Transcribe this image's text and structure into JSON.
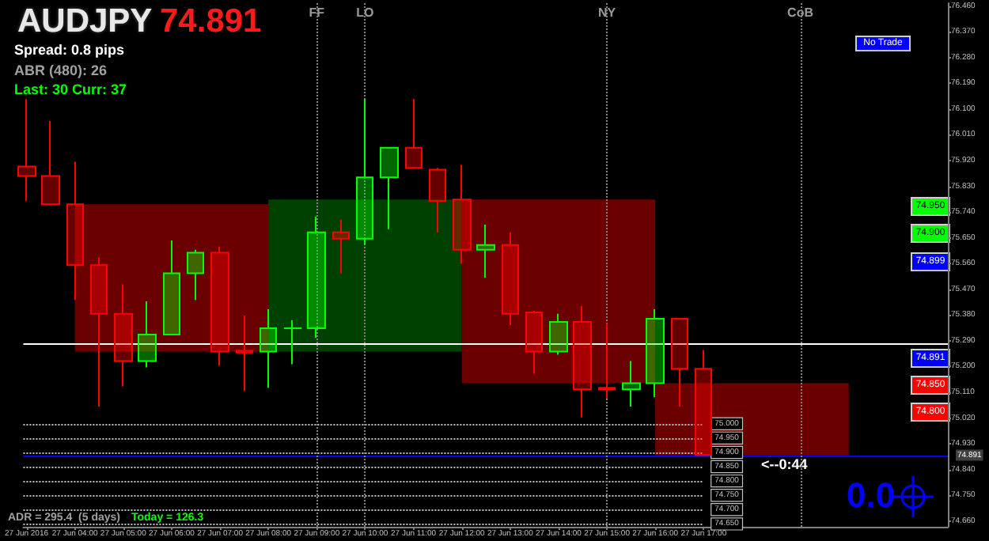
{
  "chart_data": {
    "type": "candlestick",
    "title": "AUDJPY",
    "subtitle": "74.891",
    "x": [
      "2016-06-27T03:00",
      "2016-06-27T03:30",
      "2016-06-27T04:00",
      "2016-06-27T04:30",
      "2016-06-27T05:00",
      "2016-06-27T05:30",
      "2016-06-27T06:00",
      "2016-06-27T06:30",
      "2016-06-27T07:00",
      "2016-06-27T07:30",
      "2016-06-27T08:00",
      "2016-06-27T08:30",
      "2016-06-27T09:00",
      "2016-06-27T09:30",
      "2016-06-27T10:00",
      "2016-06-27T10:30",
      "2016-06-27T11:00",
      "2016-06-27T11:30",
      "2016-06-27T12:00",
      "2016-06-27T12:30",
      "2016-06-27T13:00",
      "2016-06-27T13:30",
      "2016-06-27T14:00",
      "2016-06-27T14:30",
      "2016-06-27T15:00",
      "2016-06-27T15:30",
      "2016-06-27T16:00",
      "2016-06-27T16:30",
      "2016-06-27T17:00"
    ],
    "ohlc": [
      [
        75.899,
        76.135,
        75.778,
        75.866
      ],
      [
        75.866,
        76.058,
        75.767,
        75.767
      ],
      [
        75.767,
        75.916,
        75.433,
        75.554
      ],
      [
        75.554,
        75.581,
        75.06,
        75.384
      ],
      [
        75.384,
        75.488,
        75.131,
        75.219
      ],
      [
        75.219,
        75.428,
        75.197,
        75.312
      ],
      [
        75.312,
        75.641,
        75.312,
        75.526
      ],
      [
        75.526,
        75.608,
        75.433,
        75.598
      ],
      [
        75.598,
        75.619,
        75.203,
        75.252
      ],
      [
        75.255,
        75.378,
        75.115,
        75.249
      ],
      [
        75.252,
        75.4,
        75.126,
        75.334
      ],
      [
        75.334,
        75.362,
        75.208,
        75.334
      ],
      [
        75.334,
        75.724,
        75.301,
        75.669
      ],
      [
        75.669,
        75.713,
        75.526,
        75.647
      ],
      [
        75.647,
        76.135,
        75.625,
        75.861
      ],
      [
        75.861,
        75.965,
        75.68,
        75.965
      ],
      [
        75.965,
        76.135,
        75.894,
        75.894
      ],
      [
        75.888,
        75.894,
        75.669,
        75.778
      ],
      [
        75.784,
        75.905,
        75.559,
        75.608
      ],
      [
        75.608,
        75.696,
        75.51,
        75.625
      ],
      [
        75.625,
        75.669,
        75.345,
        75.384
      ],
      [
        75.389,
        75.395,
        75.175,
        75.252
      ],
      [
        75.252,
        75.384,
        75.241,
        75.356
      ],
      [
        75.356,
        75.411,
        75.022,
        75.12
      ],
      [
        75.126,
        75.351,
        75.088,
        75.12
      ],
      [
        75.12,
        75.219,
        75.06,
        75.142
      ],
      [
        75.142,
        75.4,
        75.093,
        75.367
      ],
      [
        75.367,
        75.367,
        75.06,
        75.192
      ],
      [
        75.192,
        75.258,
        74.891,
        74.891
      ]
    ],
    "colors": [
      "#ff0000",
      "#ff0000",
      "#ff0000",
      "#ff0000",
      "#ff0000",
      "#00ff00",
      "#00ff00",
      "#00ff00",
      "#ff0000",
      "#ff0000",
      "#00ff00",
      "#00ff00",
      "#00ff00",
      "#ff0000",
      "#00ff00",
      "#00ff00",
      "#ff0000",
      "#ff0000",
      "#ff0000",
      "#00ff00",
      "#ff0000",
      "#ff0000",
      "#00ff00",
      "#ff0000",
      "#ff0000",
      "#00ff00",
      "#00ff00",
      "#ff0000",
      "#ff0000"
    ],
    "series": [
      {
        "type": "bar",
        "x": [
          "2016-06-27T06:00",
          "2016-06-27T10:00",
          "2016-06-27T14:00",
          "2016-06-27T18:00"
        ],
        "base": [
          75.252,
          75.252,
          75.142,
          74.891
        ],
        "values": [
          0.515,
          0.532,
          0.642,
          0.251
        ],
        "colors": [
          "#6b0000",
          "#004000",
          "#6b0000",
          "#6b0000"
        ]
      }
    ],
    "xlim": [
      "2016-06-27T02:56",
      "2016-06-27T22:03"
    ],
    "xticks": [
      {
        "value": "2016-06-27T03:00",
        "label": "27 Jun 2016"
      },
      {
        "value": "2016-06-27T04:00",
        "label": "27 Jun 04:00"
      },
      {
        "value": "2016-06-27T05:00",
        "label": "27 Jun 05:00"
      },
      {
        "value": "2016-06-27T06:00",
        "label": "27 Jun 06:00"
      },
      {
        "value": "2016-06-27T07:00",
        "label": "27 Jun 07:00"
      },
      {
        "value": "2016-06-27T08:00",
        "label": "27 Jun 08:00"
      },
      {
        "value": "2016-06-27T09:00",
        "label": "27 Jun 09:00"
      },
      {
        "value": "2016-06-27T10:00",
        "label": "27 Jun 10:00"
      },
      {
        "value": "2016-06-27T11:00",
        "label": "27 Jun 11:00"
      },
      {
        "value": "2016-06-27T12:00",
        "label": "27 Jun 12:00"
      },
      {
        "value": "2016-06-27T13:00",
        "label": "27 Jun 13:00"
      },
      {
        "value": "2016-06-27T14:00",
        "label": "27 Jun 14:00"
      },
      {
        "value": "2016-06-27T15:00",
        "label": "27 Jun 15:00"
      },
      {
        "value": "2016-06-27T16:00",
        "label": "27 Jun 16:00"
      },
      {
        "value": "2016-06-27T17:00",
        "label": "27 Jun 17:00"
      }
    ],
    "ylim": [
      74.64,
      76.47
    ],
    "yticks": [
      {
        "value": 74.66,
        "label": "74.660"
      },
      {
        "value": 74.75,
        "label": "74.750"
      },
      {
        "value": 74.84,
        "label": "74.840"
      },
      {
        "value": 74.93,
        "label": "74.930"
      },
      {
        "value": 75.02,
        "label": "75.020"
      },
      {
        "value": 75.11,
        "label": "75.110"
      },
      {
        "value": 75.2,
        "label": "75.200"
      },
      {
        "value": 75.29,
        "label": "75.290"
      },
      {
        "value": 75.38,
        "label": "75.380"
      },
      {
        "value": 75.47,
        "label": "75.470"
      },
      {
        "value": 75.56,
        "label": "75.560"
      },
      {
        "value": 75.65,
        "label": "75.650"
      },
      {
        "value": 75.74,
        "label": "75.740"
      },
      {
        "value": 75.83,
        "label": "75.830"
      },
      {
        "value": 75.92,
        "label": "75.920"
      },
      {
        "value": 76.01,
        "label": "76.010"
      },
      {
        "value": 76.1,
        "label": "76.100"
      },
      {
        "value": 76.19,
        "label": "76.190"
      },
      {
        "value": 76.28,
        "label": "76.280"
      },
      {
        "value": 76.37,
        "label": "76.370"
      },
      {
        "value": 76.46,
        "label": "76.460"
      }
    ],
    "ref_lines": [
      {
        "axis": "y",
        "value": 75.28,
        "color": "#ffffff"
      },
      {
        "axis": "y",
        "value": 74.891,
        "label": "74.891",
        "color": "#0000ff"
      },
      {
        "axis": "y",
        "value": 75.0,
        "label": "75.000",
        "color": "#c0c0c0",
        "line_style": "dotted"
      },
      {
        "axis": "y",
        "value": 74.95,
        "label": "74.950",
        "color": "#c0c0c0",
        "line_style": "dotted"
      },
      {
        "axis": "y",
        "value": 74.9,
        "label": "74.900",
        "color": "#c0c0c0",
        "line_style": "dotted"
      },
      {
        "axis": "y",
        "value": 74.85,
        "label": "74.850",
        "color": "#c0c0c0",
        "line_style": "dotted"
      },
      {
        "axis": "y",
        "value": 74.8,
        "label": "74.800",
        "color": "#c0c0c0",
        "line_style": "dotted"
      },
      {
        "axis": "y",
        "value": 74.75,
        "label": "74.750",
        "color": "#c0c0c0",
        "line_style": "dotted"
      },
      {
        "axis": "y",
        "value": 74.7,
        "label": "74.700",
        "color": "#c0c0c0",
        "line_style": "dotted"
      },
      {
        "axis": "y",
        "value": 74.65,
        "label": "74.650",
        "color": "#c0c0c0",
        "line_style": "dotted"
      },
      {
        "axis": "x",
        "value": "2016-06-27T09:00",
        "label": "FF",
        "color": "#808080",
        "line_style": "dotted"
      },
      {
        "axis": "x",
        "value": "2016-06-27T10:00",
        "label": "LO",
        "color": "#808080",
        "line_style": "dotted"
      },
      {
        "axis": "x",
        "value": "2016-06-27T15:00",
        "label": "NY",
        "color": "#808080",
        "line_style": "dotted"
      },
      {
        "axis": "x",
        "value": "2016-06-27T19:00",
        "label": "CoB",
        "color": "#808080",
        "line_style": "dotted"
      }
    ],
    "annotations": [
      "Spread: 0.8 pips",
      "ABR (480): 26",
      "Last: 30 Curr: 37",
      "No Trade",
      "74.950",
      "74.900",
      "74.899",
      "74.891",
      "74.850",
      "74.800",
      "<--0:44",
      "0.0",
      "ADR = 295.4  (5 days)",
      "Today = 126.3"
    ]
  }
}
